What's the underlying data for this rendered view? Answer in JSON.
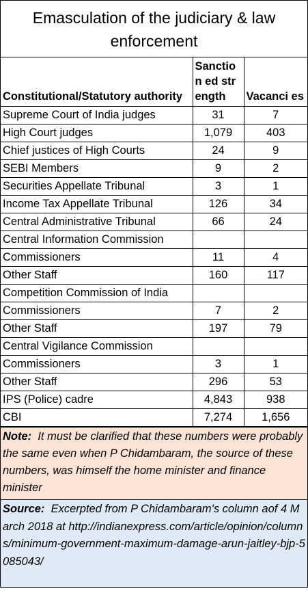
{
  "chart_data": {
    "type": "table",
    "title": "Emasculation of the judiciary & law enforcement",
    "columns": [
      "Constitutional/Statutory authority",
      "Sanctioned strength",
      "Vacancies"
    ],
    "header_display": [
      "Constitutional/Statutory authority",
      "Sanction ed strength",
      "Vacanci es"
    ],
    "rows": [
      {
        "label": "Supreme Court of India judges",
        "sanctioned": "31",
        "vacancies": "7",
        "indent": false
      },
      {
        "label": "High Court judges",
        "sanctioned": "1,079",
        "vacancies": "403",
        "indent": false
      },
      {
        "label": "Chief justices of High Courts",
        "sanctioned": "24",
        "vacancies": "9",
        "indent": false
      },
      {
        "label": "SEBI Members",
        "sanctioned": "9",
        "vacancies": "2",
        "indent": false
      },
      {
        "label": "Securities Appellate Tribunal",
        "sanctioned": "3",
        "vacancies": "1",
        "indent": false
      },
      {
        "label": "Income Tax Appellate Tribunal",
        "sanctioned": "126",
        "vacancies": "34",
        "indent": false
      },
      {
        "label": "Central Administrative Tribunal",
        "sanctioned": "66",
        "vacancies": "24",
        "indent": false
      },
      {
        "label": "Central Information Commission",
        "sanctioned": "",
        "vacancies": "",
        "indent": false
      },
      {
        "label": "Commissioners",
        "sanctioned": "11",
        "vacancies": "4",
        "indent": true
      },
      {
        "label": "Other Staff",
        "sanctioned": "160",
        "vacancies": "117",
        "indent": false
      },
      {
        "label": "Competition Commission of India",
        "sanctioned": "",
        "vacancies": "",
        "indent": false
      },
      {
        "label": "Commissioners",
        "sanctioned": "7",
        "vacancies": "2",
        "indent": true
      },
      {
        "label": "Other Staff",
        "sanctioned": "197",
        "vacancies": "79",
        "indent": true
      },
      {
        "label": "Central Vigilance Commission",
        "sanctioned": "",
        "vacancies": "",
        "indent": false
      },
      {
        "label": "Commissioners",
        "sanctioned": "3",
        "vacancies": "1",
        "indent": true
      },
      {
        "label": "Other Staff",
        "sanctioned": "296",
        "vacancies": "53",
        "indent": true
      },
      {
        "label": "IPS (Police) cadre",
        "sanctioned": "4,843",
        "vacancies": "938",
        "indent": false
      },
      {
        "label": "CBI",
        "sanctioned": "7,274",
        "vacancies": "1,656",
        "indent": false
      }
    ]
  },
  "note": {
    "label": "Note:",
    "text": "It must be clarified that these numbers were probably the same even when P Chidambaram, the source of these numbers, was himself the home minister and finance minister"
  },
  "source": {
    "label": "Source:",
    "text": "Excerpted from P Chidambaram's column aof 4 March 2018 at http://indianexpress.com/article/opinion/columns/minimum-government-maximum-damage-arun-jaitley-bjp-5085043/"
  },
  "colors": {
    "note_bg": "#fbe4d5",
    "source_bg": "#deeaf6",
    "border": "#000000"
  }
}
